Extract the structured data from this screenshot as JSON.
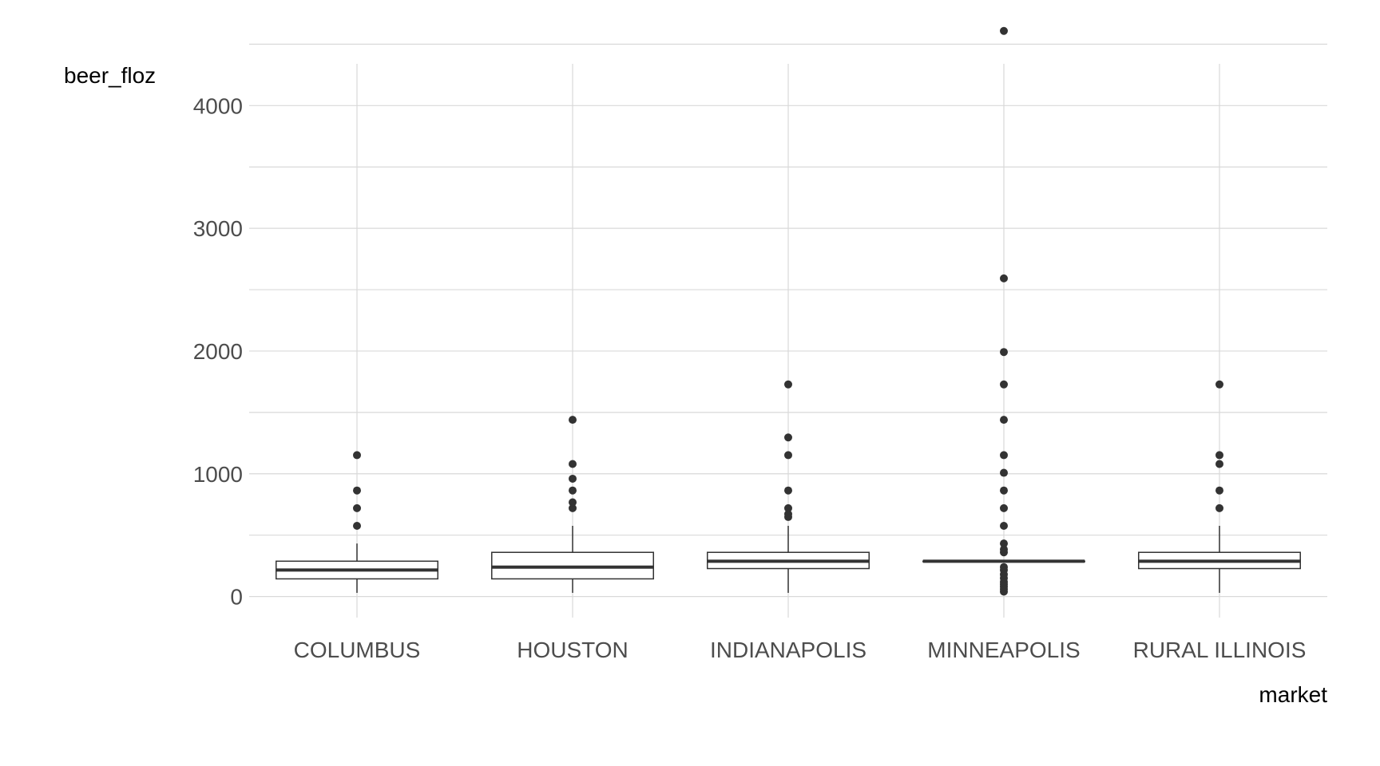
{
  "chart_data": {
    "type": "boxplot",
    "xlabel": "market",
    "ylabel": "beer_floz",
    "ylim": [
      -100,
      4600
    ],
    "yticks": [
      0,
      1000,
      2000,
      3000,
      4000
    ],
    "y_minor_gridlines": [
      500,
      1500,
      2500,
      3500,
      4500
    ],
    "grid": true,
    "categories": [
      "COLUMBUS",
      "HOUSTON",
      "INDIANAPOLIS",
      "MINNEAPOLIS",
      "RURAL ILLINOIS"
    ],
    "boxes": [
      {
        "category": "COLUMBUS",
        "whisker_low": 30,
        "q1": 144,
        "median": 216,
        "q3": 288,
        "whisker_high": 432,
        "outliers": [
          576,
          720,
          864,
          1152
        ]
      },
      {
        "category": "HOUSTON",
        "whisker_low": 30,
        "q1": 144,
        "median": 240,
        "q3": 360,
        "whisker_high": 576,
        "outliers": [
          720,
          768,
          864,
          960,
          1080,
          1440
        ]
      },
      {
        "category": "INDIANAPOLIS",
        "whisker_low": 30,
        "q1": 228,
        "median": 288,
        "q3": 360,
        "whisker_high": 576,
        "outliers": [
          648,
          672,
          720,
          864,
          1152,
          1296,
          1728
        ]
      },
      {
        "category": "MINNEAPOLIS",
        "whisker_low": 288,
        "q1": 288,
        "median": 288,
        "q3": 288,
        "whisker_high": 288,
        "outliers": [
          40,
          60,
          80,
          100,
          120,
          150,
          180,
          216,
          240,
          360,
          384,
          432,
          576,
          720,
          864,
          1008,
          1152,
          1440,
          1728,
          1992,
          2592,
          4608
        ]
      },
      {
        "category": "RURAL ILLINOIS",
        "whisker_low": 30,
        "q1": 228,
        "median": 288,
        "q3": 360,
        "whisker_high": 576,
        "outliers": [
          720,
          864,
          1080,
          1152,
          1728
        ]
      }
    ],
    "colors": {
      "grid": "#d9d9d9",
      "box_stroke": "#333333",
      "outlier": "#333333",
      "tick_text": "#4d4d4d",
      "title_text": "#000000"
    }
  }
}
